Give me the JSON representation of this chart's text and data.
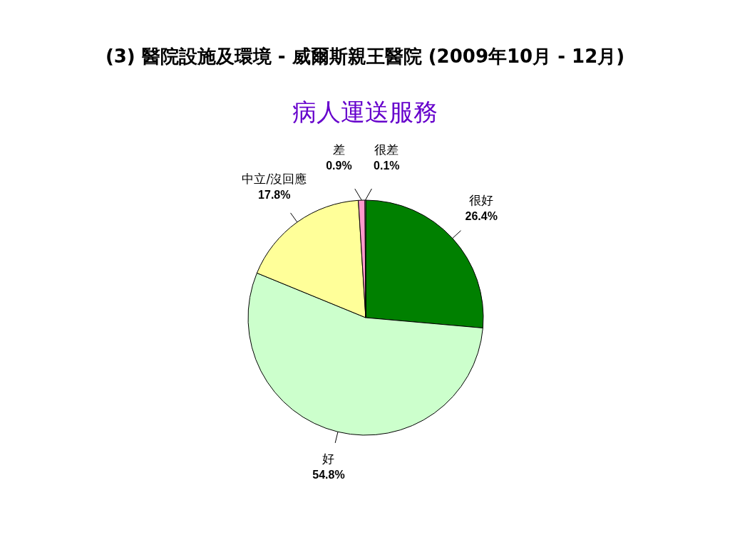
{
  "chart_data": {
    "type": "pie",
    "title": "(3) 醫院設施及環境 - 威爾斯親王醫院 (2009年10月 - 12月)",
    "subtitle": "病人運送服務",
    "categories": [
      "很好",
      "好",
      "中立/沒回應",
      "差",
      "很差"
    ],
    "values": [
      26.4,
      54.8,
      17.8,
      0.9,
      0.1
    ],
    "colors": [
      "#008000",
      "#ccffcc",
      "#ffff99",
      "#ff99cc",
      "#ffffff"
    ],
    "value_labels": [
      "26.4%",
      "54.8%",
      "17.8%",
      "0.9%",
      "0.1%"
    ],
    "legend": false
  }
}
